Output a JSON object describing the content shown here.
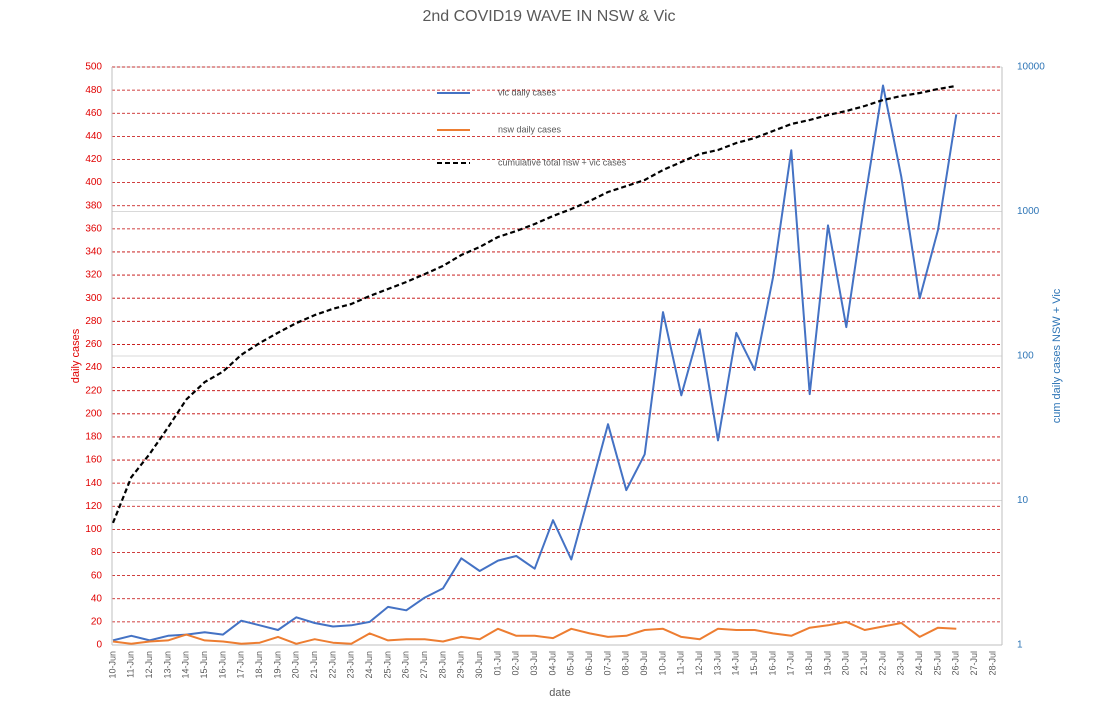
{
  "chart_data": {
    "type": "line",
    "title": "2nd COVID19 WAVE IN NSW & Vic",
    "x_label": "date",
    "y_label": "daily cases",
    "y2_label": "cum daily cases NSW + Vic",
    "categories": [
      "10-Jun",
      "11-Jun",
      "12-Jun",
      "13-Jun",
      "14-Jun",
      "15-Jun",
      "16-Jun",
      "17-Jun",
      "18-Jun",
      "19-Jun",
      "20-Jun",
      "21-Jun",
      "22-Jun",
      "23-Jun",
      "24-Jun",
      "25-Jun",
      "26-Jun",
      "27-Jun",
      "28-Jun",
      "29-Jun",
      "30-Jun",
      "01-Jul",
      "02-Jul",
      "03-Jul",
      "04-Jul",
      "05-Jul",
      "06-Jul",
      "07-Jul",
      "08-Jul",
      "09-Jul",
      "10-Jul",
      "11-Jul",
      "12-Jul",
      "13-Jul",
      "14-Jul",
      "15-Jul",
      "16-Jul",
      "17-Jul",
      "18-Jul",
      "19-Jul",
      "20-Jul",
      "21-Jul",
      "22-Jul",
      "23-Jul",
      "24-Jul",
      "25-Jul",
      "26-Jul",
      "27-Jul",
      "28-Jul"
    ],
    "series": [
      {
        "name": "vic daily cases",
        "color": "#4472c4",
        "dashed": false,
        "values": [
          4,
          8,
          4,
          8,
          9,
          11,
          9,
          21,
          17,
          13,
          24,
          19,
          16,
          17,
          20,
          33,
          30,
          41,
          49,
          75,
          64,
          73,
          77,
          66,
          108,
          74,
          132,
          191,
          134,
          165,
          288,
          216,
          273,
          177,
          270,
          238,
          318,
          428,
          217,
          363,
          275,
          384,
          484,
          405,
          300,
          359,
          459,
          null,
          null
        ]
      },
      {
        "name": "nsw daily cases",
        "color": "#ed7d31",
        "dashed": false,
        "values": [
          3,
          1,
          3,
          4,
          9,
          4,
          3,
          1,
          2,
          7,
          1,
          5,
          2,
          1,
          10,
          4,
          5,
          5,
          3,
          7,
          5,
          14,
          8,
          8,
          6,
          14,
          10,
          7,
          8,
          13,
          14,
          7,
          5,
          14,
          13,
          13,
          10,
          8,
          15,
          17,
          20,
          13,
          16,
          19,
          7,
          15,
          14,
          null,
          null
        ]
      },
      {
        "name": "cumulative total nsw + vic cases",
        "color": "#000000",
        "dashed": true,
        "axis": "y2",
        "values": [
          7,
          14.5,
          21,
          32,
          50,
          66,
          78,
          102,
          123,
          145,
          169,
          192,
          212,
          229,
          260,
          291,
          325,
          369,
          420,
          500,
          568,
          666,
          733,
          820,
          931,
          1040,
          1182,
          1365,
          1500,
          1651,
          1937,
          2200,
          2500,
          2665,
          2980,
          3226,
          3608,
          4034,
          4300,
          4656,
          4962,
          5375,
          5915,
          6300,
          6608,
          7044,
          7400,
          null,
          null
        ]
      }
    ],
    "ylim": [
      0,
      500
    ],
    "yticks": [
      0,
      20,
      40,
      60,
      80,
      100,
      120,
      140,
      160,
      180,
      200,
      220,
      240,
      260,
      280,
      300,
      320,
      340,
      360,
      380,
      400,
      420,
      440,
      460,
      480,
      500
    ],
    "y2lim": [
      1,
      10000
    ],
    "y2ticks": [
      1,
      10,
      100,
      1000,
      10000
    ],
    "y2log": true,
    "grid": true,
    "legend": "top"
  }
}
